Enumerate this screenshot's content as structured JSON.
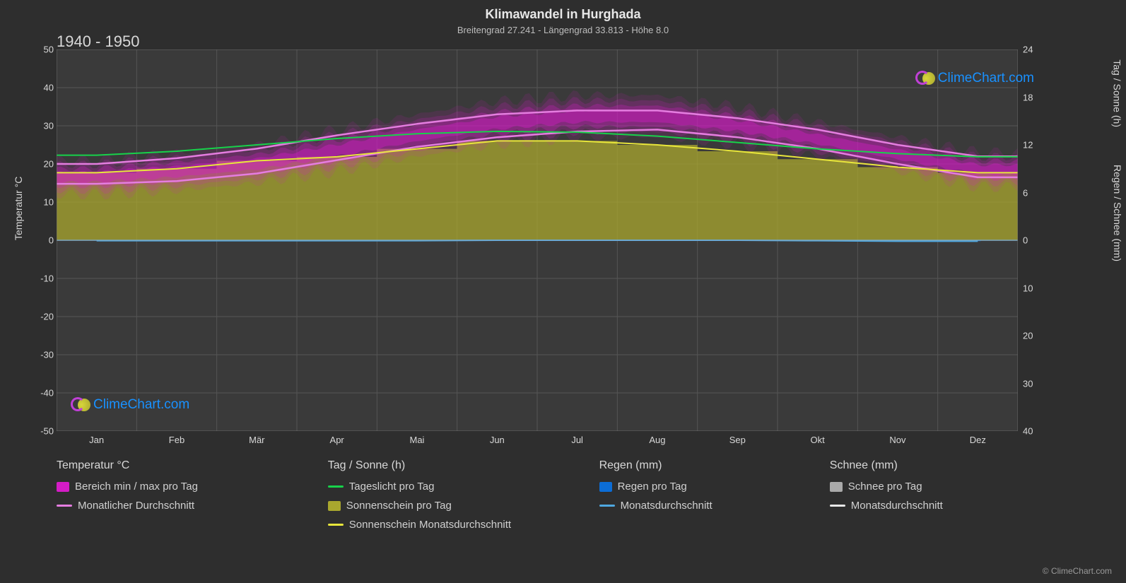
{
  "title": "Klimawandel in Hurghada",
  "subtitle": "Breitengrad 27.241 - Längengrad 33.813 - Höhe 8.0",
  "period_label": "1940 - 1950",
  "logo_text": "ClimeChart.com",
  "copyright": "© ClimeChart.com",
  "chart": {
    "type": "line-area-combo",
    "background_color": "#2e2e2e",
    "plot_background": "#3a3a3a",
    "grid_color": "#555555",
    "grid_major_color": "#666666",
    "axis_text_color": "#d8d8d8",
    "axis_fontsize": 13,
    "title_fontsize": 18,
    "subtitle_fontsize": 13,
    "months": [
      "Jan",
      "Feb",
      "Mär",
      "Apr",
      "Mai",
      "Jun",
      "Jul",
      "Aug",
      "Sep",
      "Okt",
      "Nov",
      "Dez"
    ],
    "y_left": {
      "label": "Temperatur °C",
      "min": -50,
      "max": 50,
      "step": 10,
      "ticks": [
        50,
        40,
        30,
        20,
        10,
        0,
        -10,
        -20,
        -30,
        -40,
        -50
      ]
    },
    "y_right_sun": {
      "label": "Tag / Sonne (h)",
      "min": 0,
      "max": 24,
      "step": 6,
      "ticks": [
        24,
        18,
        12,
        6,
        0
      ]
    },
    "y_right_rain": {
      "label": "Regen / Schnee (mm)",
      "min": 0,
      "max": 40,
      "step": 10,
      "ticks": [
        0,
        10,
        20,
        30,
        40
      ]
    },
    "series": {
      "temp_range": {
        "label": "Bereich min / max pro Tag",
        "color": "#d41cc6",
        "fill_opacity": 0.55,
        "min": [
          12,
          13,
          15,
          18,
          22,
          25,
          27,
          27,
          25,
          22,
          18,
          14
        ],
        "max": [
          21,
          23,
          25,
          29,
          33,
          36.5,
          38,
          38,
          35,
          31,
          27,
          23
        ],
        "render": "fuzzy-band"
      },
      "temp_monthly": {
        "label": "Monatlicher Durchschnitt",
        "color": "#e57de0",
        "line_width": 2.5,
        "low": [
          14.8,
          15.5,
          17.5,
          21,
          24.5,
          27,
          28.5,
          29,
          27,
          24,
          20,
          16.5
        ],
        "high": [
          20,
          21.5,
          24,
          27.5,
          30.5,
          33,
          34,
          34,
          32,
          29,
          25,
          22
        ]
      },
      "daylight": {
        "label": "Tageslicht pro Tag",
        "color": "#17d24a",
        "line_width": 2,
        "values_h": [
          10.7,
          11.2,
          12,
          12.8,
          13.4,
          13.7,
          13.6,
          13.1,
          12.3,
          11.5,
          10.9,
          10.5
        ]
      },
      "sunshine_area": {
        "label": "Sonnenschein pro Tag",
        "color": "#a9a72e",
        "fill_opacity": 0.75,
        "values_h": [
          8.5,
          9,
          10,
          10.5,
          11.5,
          12.5,
          12.5,
          12,
          11.2,
          10.2,
          9.2,
          8.5
        ]
      },
      "sunshine_monthly": {
        "label": "Sonnenschein Monatsdurchschnitt",
        "color": "#e8e63b",
        "line_width": 2,
        "values_h": [
          8.5,
          9,
          10,
          10.5,
          11.5,
          12.5,
          12.5,
          12,
          11.2,
          10.2,
          9.2,
          8.5
        ]
      },
      "rain_daily": {
        "label": "Regen pro Tag",
        "color": "#0c6dd6",
        "render": "bars",
        "values_mm": [
          0.1,
          0.1,
          0.1,
          0.1,
          0.1,
          0,
          0,
          0,
          0,
          0.2,
          0.2,
          0.2
        ]
      },
      "rain_monthly": {
        "label": "Monatsdurchschnitt",
        "color": "#4fa8e0",
        "line_width": 2,
        "values_mm": [
          0.1,
          0.1,
          0.1,
          0.1,
          0.1,
          0,
          0,
          0,
          0,
          0.1,
          0.2,
          0.2
        ]
      },
      "snow_daily": {
        "label": "Schnee pro Tag",
        "color": "#aaaaaa",
        "render": "bars",
        "values_mm": [
          0,
          0,
          0,
          0,
          0,
          0,
          0,
          0,
          0,
          0,
          0,
          0
        ]
      },
      "snow_monthly": {
        "label": "Monatsdurchschnitt",
        "color": "#e8e8e8",
        "line_width": 2,
        "values_mm": [
          0,
          0,
          0,
          0,
          0,
          0,
          0,
          0,
          0,
          0,
          0,
          0
        ]
      }
    }
  },
  "legend": {
    "groups": [
      {
        "heading": "Temperatur °C",
        "items": [
          {
            "type": "swatch",
            "color": "#d41cc6",
            "label": "Bereich min / max pro Tag"
          },
          {
            "type": "line",
            "color": "#e57de0",
            "label": "Monatlicher Durchschnitt"
          }
        ]
      },
      {
        "heading": "Tag / Sonne (h)",
        "items": [
          {
            "type": "line",
            "color": "#17d24a",
            "label": "Tageslicht pro Tag"
          },
          {
            "type": "swatch",
            "color": "#a9a72e",
            "label": "Sonnenschein pro Tag"
          },
          {
            "type": "line",
            "color": "#e8e63b",
            "label": "Sonnenschein Monatsdurchschnitt"
          }
        ]
      },
      {
        "heading": "Regen (mm)",
        "items": [
          {
            "type": "swatch",
            "color": "#0c6dd6",
            "label": "Regen pro Tag"
          },
          {
            "type": "line",
            "color": "#4fa8e0",
            "label": "Monatsdurchschnitt"
          }
        ]
      },
      {
        "heading": "Schnee (mm)",
        "items": [
          {
            "type": "swatch",
            "color": "#aaaaaa",
            "label": "Schnee pro Tag"
          },
          {
            "type": "line",
            "color": "#e8e8e8",
            "label": "Monatsdurchschnitt"
          }
        ]
      }
    ]
  }
}
